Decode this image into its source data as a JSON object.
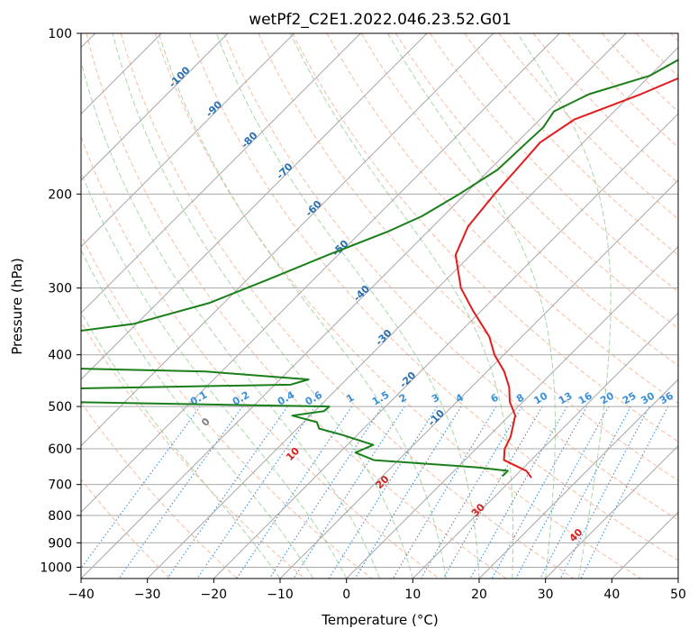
{
  "chart_data": {
    "type": "line",
    "subtype": "skew-T log-P diagram",
    "title": "wetPf2_C2E1.2022.046.23.52.G01",
    "xlabel": "Temperature (°C)",
    "ylabel": "Pressure (hPa)",
    "xlim": [
      -40,
      50
    ],
    "ylim": [
      1050,
      100
    ],
    "x_ticks": [
      -40,
      -30,
      -20,
      -10,
      0,
      10,
      20,
      30,
      40,
      50
    ],
    "y_ticks": [
      100,
      200,
      300,
      400,
      500,
      600,
      700,
      800,
      900,
      1000
    ],
    "grid": true,
    "colors": {
      "temperature": "#e41a1c",
      "dewpoint": "#1a7f1a",
      "isotherm": "#a8a8a8",
      "dry_adiabat": "#f4a582",
      "moist_adiabat": "#9fd39f",
      "mixing_ratio": "#3a8fd9",
      "isotherm_label": "#2a6fb0",
      "dry_adiabat_label": "#d42020",
      "mixing_label": "#3a8fd9"
    },
    "series": [
      {
        "name": "Temperature",
        "points": [
          [
            -22.1,
            100
          ],
          [
            -22.3,
            108
          ],
          [
            -24.0,
            118
          ],
          [
            -28.6,
            130
          ],
          [
            -34.8,
            145
          ],
          [
            -36.5,
            160
          ],
          [
            -36.0,
            180
          ],
          [
            -35.6,
            200
          ],
          [
            -34.7,
            230
          ],
          [
            -32.3,
            260
          ],
          [
            -26.5,
            300
          ],
          [
            -21.4,
            330
          ],
          [
            -14.9,
            370
          ],
          [
            -11.4,
            400
          ],
          [
            -7.4,
            430
          ],
          [
            -4.3,
            460
          ],
          [
            -2.0,
            490
          ],
          [
            0.9,
            520
          ],
          [
            3.4,
            570
          ],
          [
            4.3,
            600
          ],
          [
            5.9,
            630
          ],
          [
            10.9,
            660
          ],
          [
            12.7,
            680
          ]
        ]
      },
      {
        "name": "Dewpoint",
        "points": [
          [
            -25.3,
            100
          ],
          [
            -27.6,
            110
          ],
          [
            -30.0,
            120
          ],
          [
            -36.4,
            130
          ],
          [
            -39.1,
            140
          ],
          [
            -38.3,
            150
          ],
          [
            -38.5,
            160
          ],
          [
            -38.8,
            180
          ],
          [
            -40.9,
            200
          ],
          [
            -43.2,
            220
          ],
          [
            -46.0,
            235
          ],
          [
            -51.5,
            260
          ],
          [
            -57.0,
            290
          ],
          [
            -62.2,
            320
          ],
          [
            -70.4,
            350
          ],
          [
            -89.4,
            380
          ],
          [
            -94.8,
            392
          ],
          [
            -99.7,
            410
          ],
          [
            -107.5,
            415
          ],
          [
            -52.4,
            430
          ],
          [
            -35.7,
            445
          ],
          [
            -37.6,
            455
          ],
          [
            -100.1,
            470
          ],
          [
            -100.4,
            480
          ],
          [
            -70.6,
            490
          ],
          [
            -28.5,
            500
          ],
          [
            -28.6,
            510
          ],
          [
            -32.7,
            520
          ],
          [
            -28.0,
            535
          ],
          [
            -26.7,
            550
          ],
          [
            -22.3,
            565
          ],
          [
            -16.1,
            590
          ],
          [
            -17.6,
            610
          ],
          [
            -13.7,
            630
          ],
          [
            2.9,
            650
          ],
          [
            8.1,
            660
          ],
          [
            8.1,
            675
          ]
        ]
      }
    ],
    "annotations": {
      "isotherm_labels": [
        "-100",
        "-90",
        "-80",
        "-70",
        "-60",
        "-50",
        "-40",
        "-30",
        "-20",
        "-10"
      ],
      "dry_adiabat_labels": [
        "0",
        "10",
        "20",
        "30",
        "40"
      ],
      "mixing_ratio_labels": [
        "0.1",
        "0.2",
        "0.4",
        "0.6",
        "1",
        "1.5",
        "2",
        "3",
        "4",
        "6",
        "8",
        "10",
        "13",
        "16",
        "20",
        "25",
        "30",
        "36"
      ]
    }
  }
}
